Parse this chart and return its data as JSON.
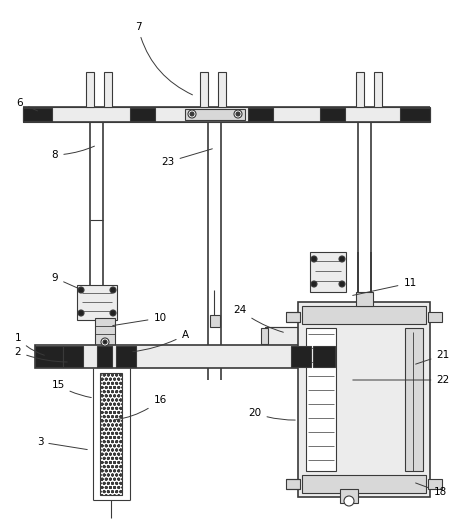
{
  "bg_color": "#ffffff",
  "lc": "#3a3a3a",
  "dark": "#222222",
  "gray1": "#d8d8d8",
  "gray2": "#ececec",
  "lw": 0.8,
  "tlw": 1.2,
  "fs": 7.5
}
